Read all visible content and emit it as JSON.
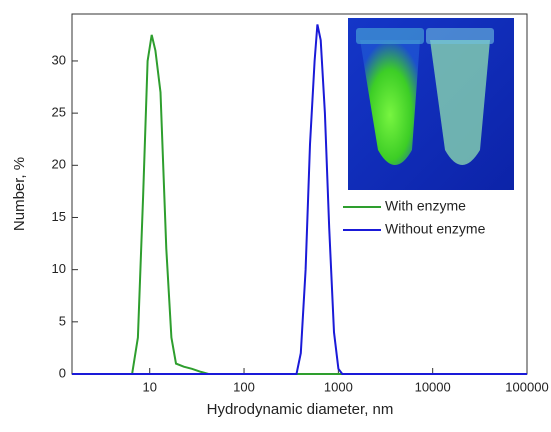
{
  "chart_data": {
    "type": "line",
    "x_label": "Hydrodynamic diameter, nm",
    "y_label": "Number, %",
    "x_log": true,
    "xlim": [
      1.5,
      100000
    ],
    "xticks": [
      10,
      100,
      1000,
      10000,
      100000
    ],
    "ylim": [
      0,
      34.5
    ],
    "yticks": [
      0,
      5,
      10,
      15,
      20,
      25,
      30
    ],
    "legend": "right",
    "series": [
      {
        "name": "With enzyme",
        "color": "#2e9e2e",
        "x": [
          1.5,
          6.5,
          7.5,
          8.5,
          9.5,
          10.5,
          11.5,
          13,
          15,
          17,
          19,
          23,
          28,
          35,
          42,
          100000
        ],
        "values": [
          0,
          0,
          3.5,
          17,
          30,
          32.5,
          31,
          27,
          12,
          3.5,
          1,
          0.7,
          0.5,
          0.2,
          0,
          0
        ]
      },
      {
        "name": "Without enzyme",
        "color": "#1a1ad8",
        "x": [
          1.5,
          360,
          400,
          450,
          500,
          560,
          600,
          650,
          720,
          800,
          900,
          1000,
          1100,
          100000
        ],
        "values": [
          0,
          0,
          2,
          10,
          22,
          30,
          33.5,
          32,
          25,
          14,
          4,
          0.5,
          0,
          0
        ]
      }
    ]
  }
}
